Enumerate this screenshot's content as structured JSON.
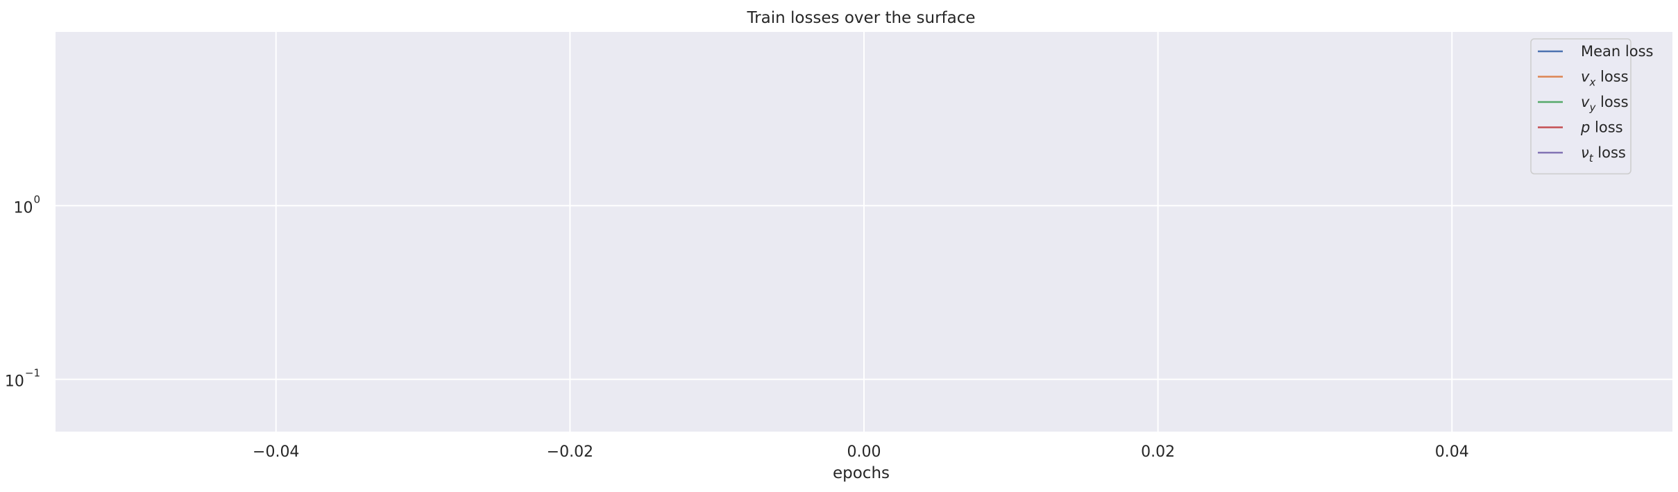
{
  "chart_data": {
    "type": "line",
    "title": "Train losses over the surface",
    "xlabel": "epochs",
    "ylabel": "",
    "yscale": "log",
    "xlim": [
      -0.055,
      0.055
    ],
    "ylim": [
      0.05,
      10
    ],
    "grid": true,
    "background": "#eaeaf2",
    "grid_color": "#ffffff",
    "x_ticks": [
      {
        "value": -0.04,
        "label": "−0.04"
      },
      {
        "value": -0.02,
        "label": "−0.02"
      },
      {
        "value": 0.0,
        "label": "0.00"
      },
      {
        "value": 0.02,
        "label": "0.02"
      },
      {
        "value": 0.04,
        "label": "0.04"
      }
    ],
    "y_ticks": [
      {
        "value": 1,
        "base": "10",
        "exp": "0"
      },
      {
        "value": 0.1,
        "base": "10",
        "exp": "−1"
      }
    ],
    "legend_position": "upper right",
    "series": [
      {
        "name": "Mean loss",
        "var": "",
        "sub": "",
        "suffix": "",
        "color": "#4c72b0",
        "values": []
      },
      {
        "name": "v_x loss",
        "var": "v",
        "sub": "x",
        "suffix": " loss",
        "color": "#dd8452",
        "values": []
      },
      {
        "name": "v_y loss",
        "var": "v",
        "sub": "y",
        "suffix": " loss",
        "color": "#55a868",
        "values": []
      },
      {
        "name": "p loss",
        "var": "p",
        "sub": "",
        "suffix": " loss",
        "color": "#c44e52",
        "values": []
      },
      {
        "name": "ν_t loss",
        "var": "ν",
        "sub": "t",
        "suffix": " loss",
        "color": "#8172b3",
        "values": []
      }
    ]
  }
}
